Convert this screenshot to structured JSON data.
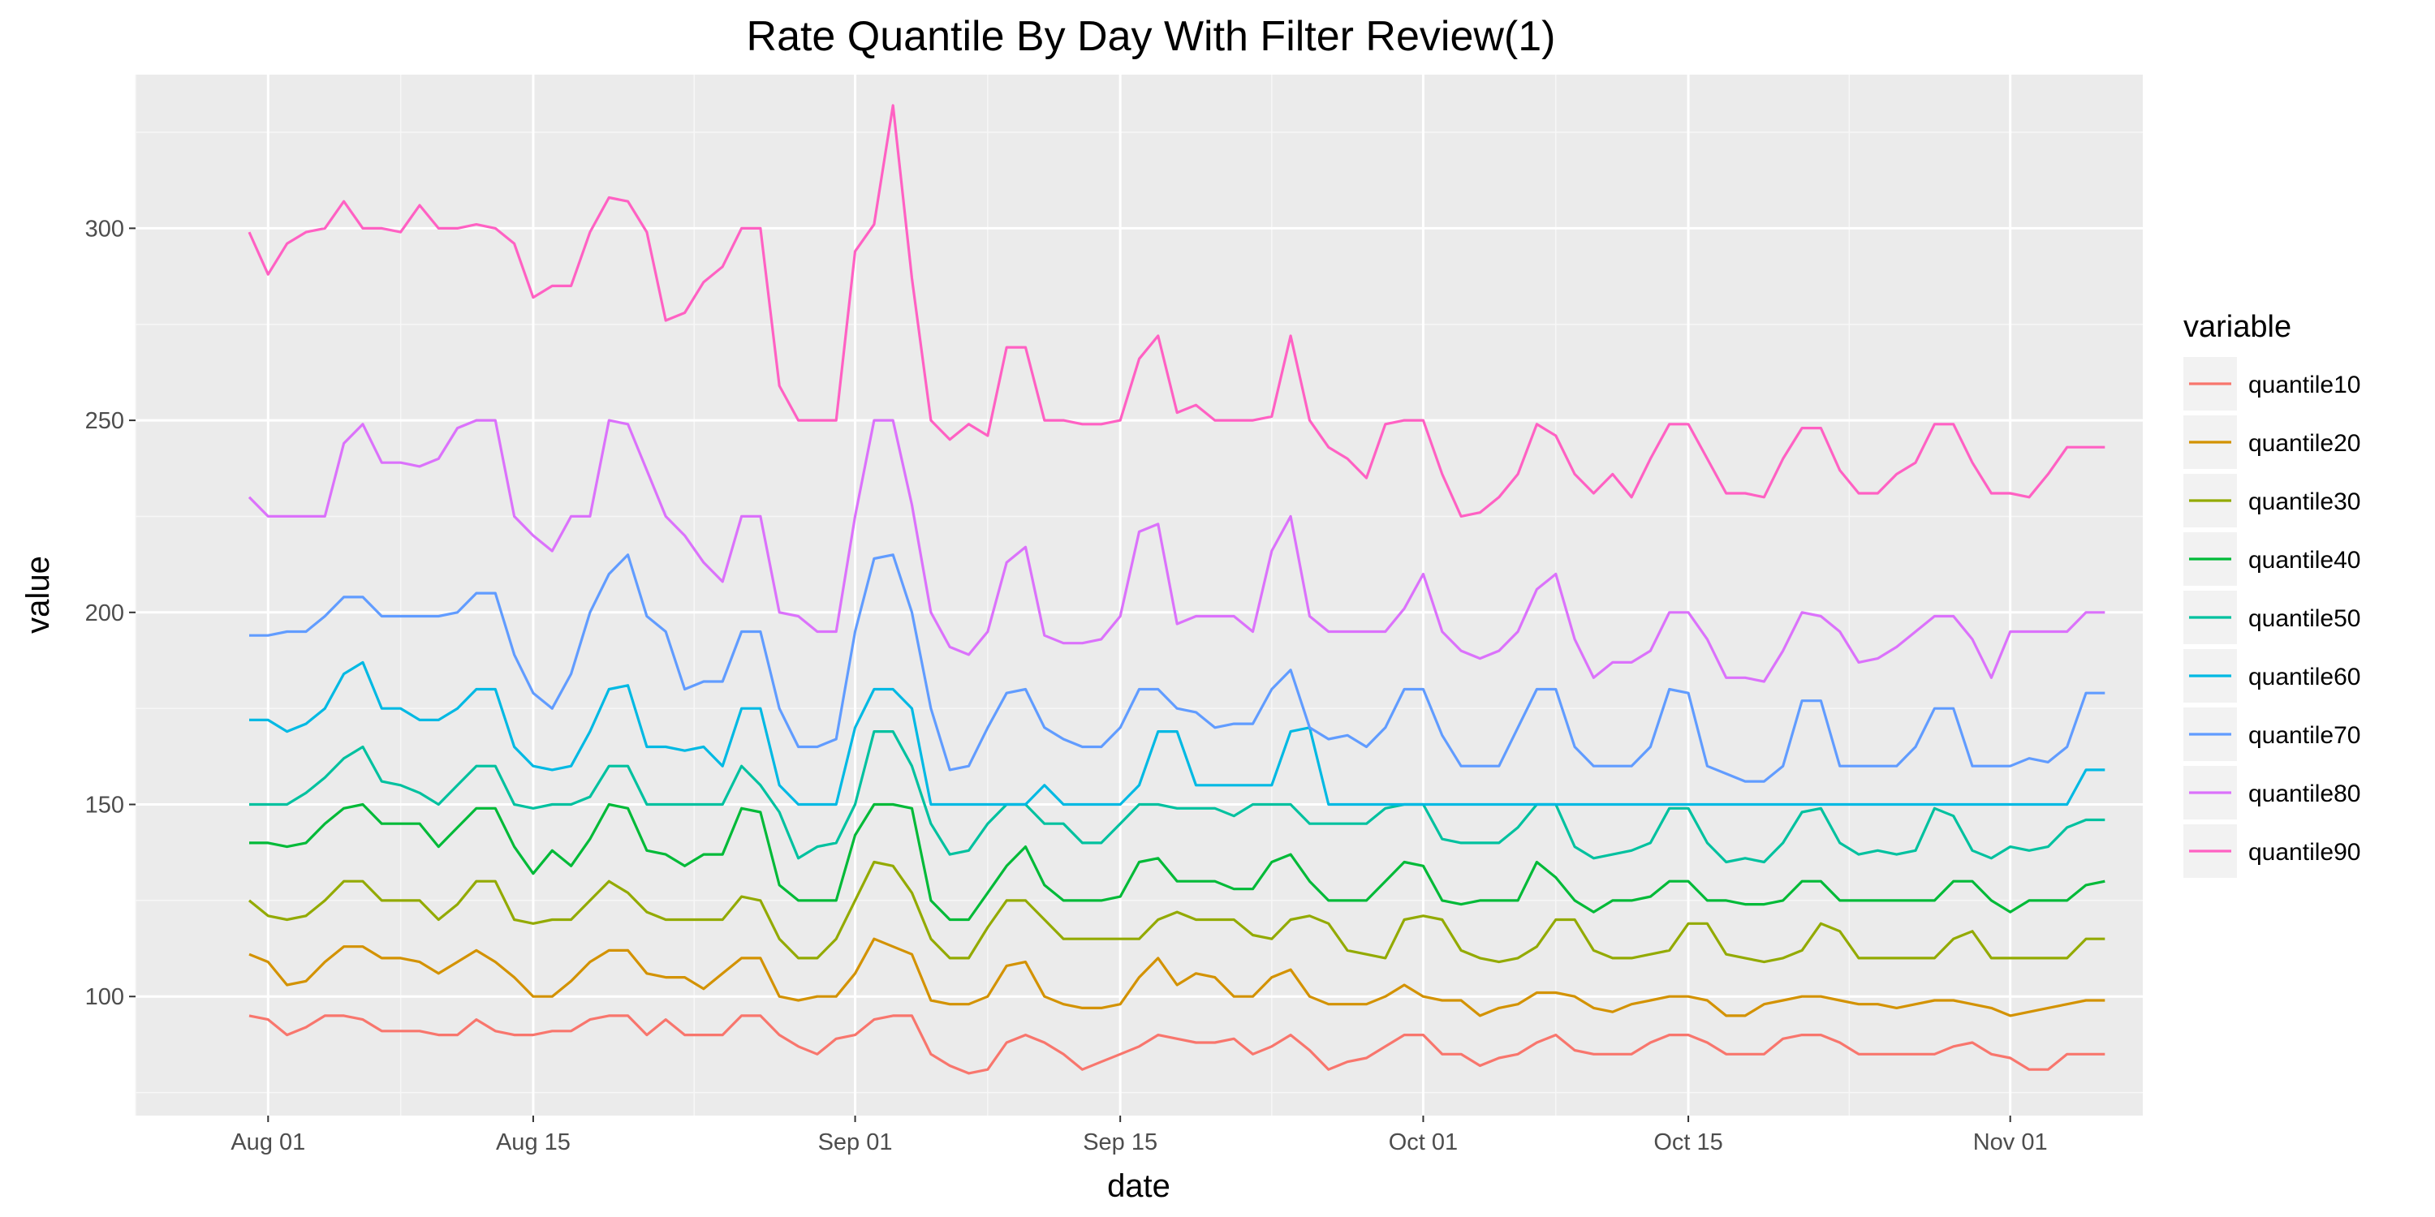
{
  "chart_data": {
    "type": "line",
    "title": "Rate Quantile By Day With Filter Review(1)",
    "xlabel": "date",
    "ylabel": "value",
    "x_start": "2016-07-31",
    "x_ticks": [
      {
        "date": "2016-08-01",
        "label": "Aug 01"
      },
      {
        "date": "2016-08-15",
        "label": "Aug 15"
      },
      {
        "date": "2016-09-01",
        "label": "Sep 01"
      },
      {
        "date": "2016-09-15",
        "label": "Sep 15"
      },
      {
        "date": "2016-10-01",
        "label": "Oct 01"
      },
      {
        "date": "2016-10-15",
        "label": "Oct 15"
      },
      {
        "date": "2016-11-01",
        "label": "Nov 01"
      }
    ],
    "xlim": [
      "2016-07-25",
      "2016-11-08"
    ],
    "y_ticks": [
      100,
      150,
      200,
      250,
      300
    ],
    "ylim": [
      69,
      340
    ],
    "grid": true,
    "legend": {
      "title": "variable",
      "position": "right"
    },
    "series": [
      {
        "name": "quantile10",
        "color": "#F8766D",
        "values": [
          95,
          94,
          90,
          92,
          95,
          95,
          94,
          91,
          91,
          91,
          90,
          90,
          94,
          91,
          90,
          90,
          91,
          91,
          94,
          95,
          95,
          90,
          94,
          90,
          90,
          90,
          95,
          95,
          90,
          87,
          85,
          89,
          90,
          94,
          95,
          95,
          85,
          82,
          80,
          81,
          88,
          90,
          88,
          85,
          81,
          83,
          85,
          87,
          90,
          89,
          88,
          88,
          89,
          85,
          87,
          90,
          86,
          81,
          83,
          84,
          87,
          90,
          90,
          85,
          85,
          82,
          84,
          85,
          88,
          90,
          86,
          85,
          85,
          85,
          88,
          90,
          90,
          88,
          85,
          85,
          85,
          89,
          90,
          90,
          88,
          85,
          85,
          85,
          85,
          85,
          87,
          88,
          85,
          84,
          81,
          81,
          85,
          85,
          85
        ]
      },
      {
        "name": "quantile20",
        "color": "#D39200",
        "values": [
          111,
          109,
          103,
          104,
          109,
          113,
          113,
          110,
          110,
          109,
          106,
          109,
          112,
          109,
          105,
          100,
          100,
          104,
          109,
          112,
          112,
          106,
          105,
          105,
          102,
          106,
          110,
          110,
          100,
          99,
          100,
          100,
          106,
          115,
          113,
          111,
          99,
          98,
          98,
          100,
          108,
          109,
          100,
          98,
          97,
          97,
          98,
          105,
          110,
          103,
          106,
          105,
          100,
          100,
          105,
          107,
          100,
          98,
          98,
          98,
          100,
          103,
          100,
          99,
          99,
          95,
          97,
          98,
          101,
          101,
          100,
          97,
          96,
          98,
          99,
          100,
          100,
          99,
          95,
          95,
          98,
          99,
          100,
          100,
          99,
          98,
          98,
          97,
          98,
          99,
          99,
          98,
          97,
          95,
          96,
          97,
          98,
          99,
          99
        ]
      },
      {
        "name": "quantile30",
        "color": "#93AA00",
        "values": [
          125,
          121,
          120,
          121,
          125,
          130,
          130,
          125,
          125,
          125,
          120,
          124,
          130,
          130,
          120,
          119,
          120,
          120,
          125,
          130,
          127,
          122,
          120,
          120,
          120,
          120,
          126,
          125,
          115,
          110,
          110,
          115,
          125,
          135,
          134,
          127,
          115,
          110,
          110,
          118,
          125,
          125,
          120,
          115,
          115,
          115,
          115,
          115,
          120,
          122,
          120,
          120,
          120,
          116,
          115,
          120,
          121,
          119,
          112,
          111,
          110,
          120,
          121,
          120,
          112,
          110,
          109,
          110,
          113,
          120,
          120,
          112,
          110,
          110,
          111,
          112,
          119,
          119,
          111,
          110,
          109,
          110,
          112,
          119,
          117,
          110,
          110,
          110,
          110,
          110,
          115,
          117,
          110,
          110,
          110,
          110,
          110,
          115,
          115
        ]
      },
      {
        "name": "quantile40",
        "color": "#00BA38",
        "values": [
          140,
          140,
          139,
          140,
          145,
          149,
          150,
          145,
          145,
          145,
          139,
          144,
          149,
          149,
          139,
          132,
          138,
          134,
          141,
          150,
          149,
          138,
          137,
          134,
          137,
          137,
          149,
          148,
          129,
          125,
          125,
          125,
          142,
          150,
          150,
          149,
          125,
          120,
          120,
          127,
          134,
          139,
          129,
          125,
          125,
          125,
          126,
          135,
          136,
          130,
          130,
          130,
          128,
          128,
          135,
          137,
          130,
          125,
          125,
          125,
          130,
          135,
          134,
          125,
          124,
          125,
          125,
          125,
          135,
          131,
          125,
          122,
          125,
          125,
          126,
          130,
          130,
          125,
          125,
          124,
          124,
          125,
          130,
          130,
          125,
          125,
          125,
          125,
          125,
          125,
          130,
          130,
          125,
          122,
          125,
          125,
          125,
          129,
          130
        ]
      },
      {
        "name": "quantile50",
        "color": "#00C19F",
        "values": [
          150,
          150,
          150,
          153,
          157,
          162,
          165,
          156,
          155,
          153,
          150,
          155,
          160,
          160,
          150,
          149,
          150,
          150,
          152,
          160,
          160,
          150,
          150,
          150,
          150,
          150,
          160,
          155,
          148,
          136,
          139,
          140,
          150,
          169,
          169,
          160,
          145,
          137,
          138,
          145,
          150,
          150,
          145,
          145,
          140,
          140,
          145,
          150,
          150,
          149,
          149,
          149,
          147,
          150,
          150,
          150,
          145,
          145,
          145,
          145,
          149,
          150,
          150,
          141,
          140,
          140,
          140,
          144,
          150,
          150,
          139,
          136,
          137,
          138,
          140,
          149,
          149,
          140,
          135,
          136,
          135,
          140,
          148,
          149,
          140,
          137,
          138,
          137,
          138,
          149,
          147,
          138,
          136,
          139,
          138,
          139,
          144,
          146,
          146
        ]
      },
      {
        "name": "quantile60",
        "color": "#00B9E3",
        "values": [
          172,
          172,
          169,
          171,
          175,
          184,
          187,
          175,
          175,
          172,
          172,
          175,
          180,
          180,
          165,
          160,
          159,
          160,
          169,
          180,
          181,
          165,
          165,
          164,
          165,
          160,
          175,
          175,
          155,
          150,
          150,
          150,
          170,
          180,
          180,
          175,
          150,
          150,
          150,
          150,
          150,
          150,
          155,
          150,
          150,
          150,
          150,
          155,
          169,
          169,
          155,
          155,
          155,
          155,
          155,
          169,
          170,
          150,
          150,
          150,
          150,
          150,
          150,
          150,
          150,
          150,
          150,
          150,
          150,
          150,
          150,
          150,
          150,
          150,
          150,
          150,
          150,
          150,
          150,
          150,
          150,
          150,
          150,
          150,
          150,
          150,
          150,
          150,
          150,
          150,
          150,
          150,
          150,
          150,
          150,
          150,
          150,
          159,
          159
        ]
      },
      {
        "name": "quantile70",
        "color": "#619CFF",
        "values": [
          194,
          194,
          195,
          195,
          199,
          204,
          204,
          199,
          199,
          199,
          199,
          200,
          205,
          205,
          189,
          179,
          175,
          184,
          200,
          210,
          215,
          199,
          195,
          180,
          182,
          182,
          195,
          195,
          175,
          165,
          165,
          167,
          195,
          214,
          215,
          200,
          175,
          159,
          160,
          170,
          179,
          180,
          170,
          167,
          165,
          165,
          170,
          180,
          180,
          175,
          174,
          170,
          171,
          171,
          180,
          185,
          170,
          167,
          168,
          165,
          170,
          180,
          180,
          168,
          160,
          160,
          160,
          170,
          180,
          180,
          165,
          160,
          160,
          160,
          165,
          180,
          179,
          160,
          158,
          156,
          156,
          160,
          177,
          177,
          160,
          160,
          160,
          160,
          165,
          175,
          175,
          160,
          160,
          160,
          162,
          161,
          165,
          179,
          179
        ]
      },
      {
        "name": "quantile80",
        "color": "#DB72FB",
        "values": [
          230,
          225,
          225,
          225,
          225,
          244,
          249,
          239,
          239,
          238,
          240,
          248,
          250,
          250,
          225,
          220,
          216,
          225,
          225,
          250,
          249,
          237,
          225,
          220,
          213,
          208,
          225,
          225,
          200,
          199,
          195,
          195,
          225,
          250,
          250,
          228,
          200,
          191,
          189,
          195,
          213,
          217,
          194,
          192,
          192,
          193,
          199,
          221,
          223,
          197,
          199,
          199,
          199,
          195,
          216,
          225,
          199,
          195,
          195,
          195,
          195,
          201,
          210,
          195,
          190,
          188,
          190,
          195,
          206,
          210,
          193,
          183,
          187,
          187,
          190,
          200,
          200,
          193,
          183,
          183,
          182,
          190,
          200,
          199,
          195,
          187,
          188,
          191,
          195,
          199,
          199,
          193,
          183,
          195,
          195,
          195,
          195,
          200,
          200
        ]
      },
      {
        "name": "quantile90",
        "color": "#FF61C3",
        "values": [
          299,
          288,
          296,
          299,
          300,
          307,
          300,
          300,
          299,
          306,
          300,
          300,
          301,
          300,
          296,
          282,
          285,
          285,
          299,
          308,
          307,
          299,
          276,
          278,
          286,
          290,
          300,
          300,
          259,
          250,
          250,
          250,
          294,
          301,
          332,
          287,
          250,
          245,
          249,
          246,
          269,
          269,
          250,
          250,
          249,
          249,
          250,
          266,
          272,
          252,
          254,
          250,
          250,
          250,
          251,
          272,
          250,
          243,
          240,
          235,
          249,
          250,
          250,
          236,
          225,
          226,
          230,
          236,
          249,
          246,
          236,
          231,
          236,
          230,
          240,
          249,
          249,
          240,
          231,
          231,
          230,
          240,
          248,
          248,
          237,
          231,
          231,
          236,
          239,
          249,
          249,
          239,
          231,
          231,
          230,
          236,
          243,
          243,
          243
        ]
      }
    ]
  }
}
